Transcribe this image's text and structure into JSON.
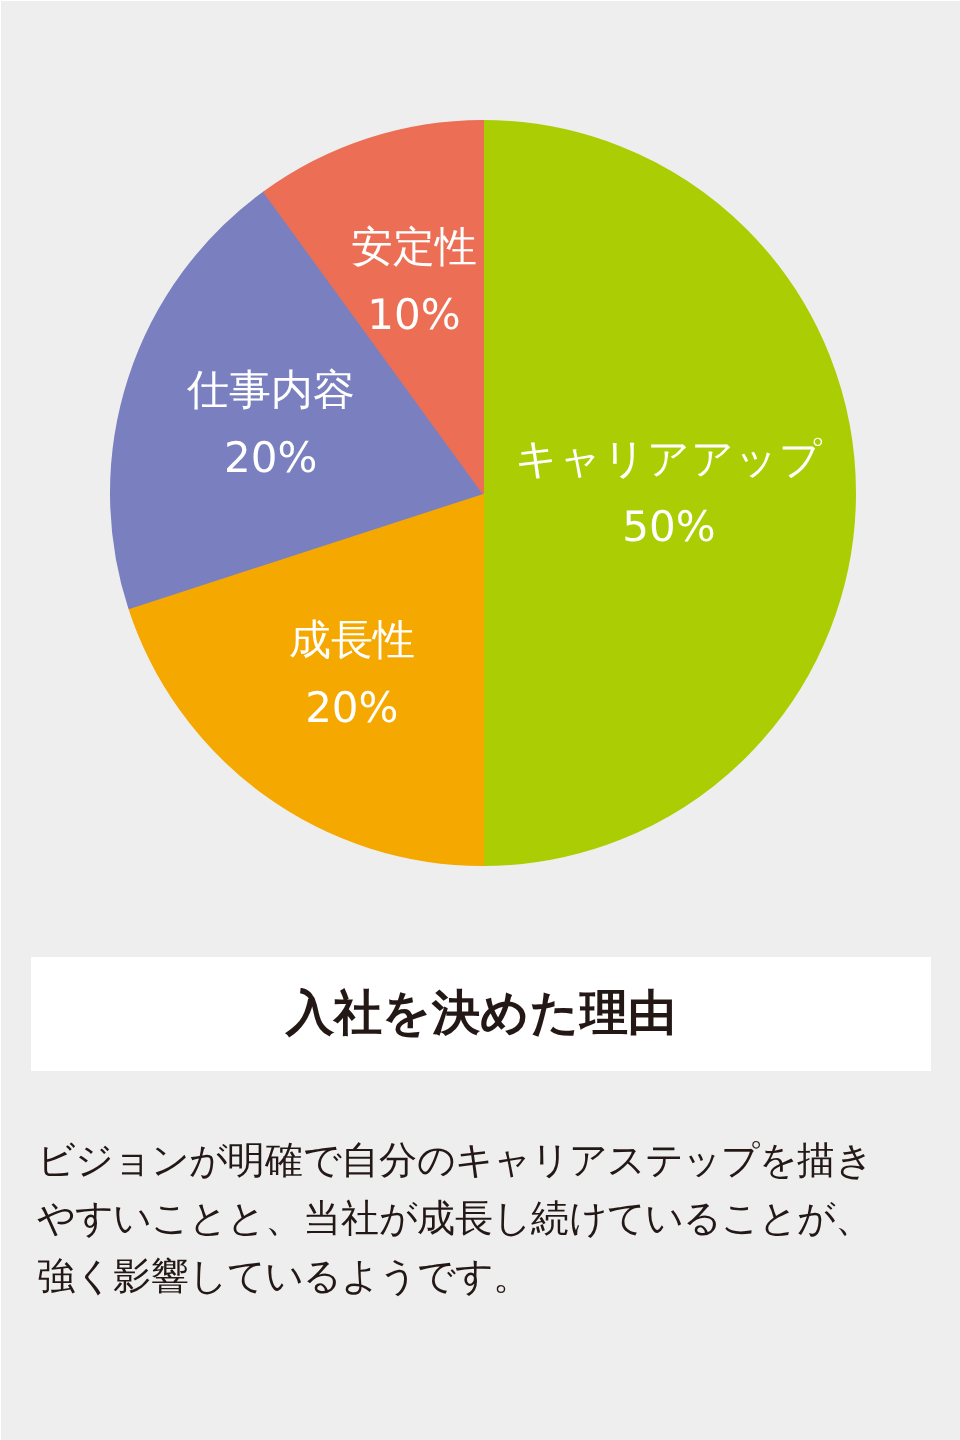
{
  "chart_data": {
    "type": "pie",
    "title": "入社を決めた理由",
    "categories": [
      "キャリアアップ",
      "成長性",
      "仕事内容",
      "安定性"
    ],
    "values": [
      50,
      20,
      20,
      10
    ],
    "value_labels": [
      "50%",
      "20%",
      "20%",
      "10%"
    ],
    "colors": [
      "#abcd03",
      "#f5a800",
      "#7a80bf",
      "#eb6e55"
    ],
    "annotations": [
      "ビジョンが明確で自分のキャリアステップを描きやすいことと、当社が成長し続けていることが、強く影響しているようです。"
    ]
  }
}
